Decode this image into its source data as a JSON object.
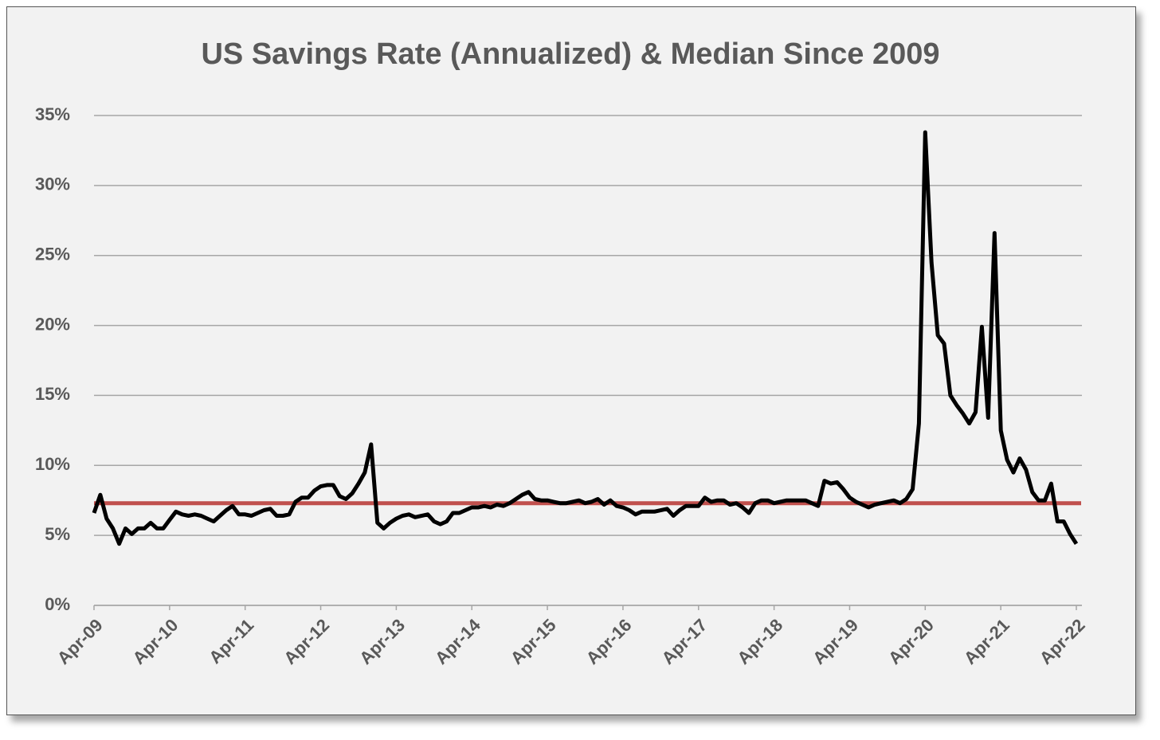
{
  "chart_data": {
    "type": "line",
    "title": "US Savings Rate (Annualized) & Median Since 2009",
    "categories": [
      "Apr-09",
      null,
      null,
      null,
      null,
      null,
      null,
      null,
      null,
      null,
      null,
      null,
      "Apr-10",
      null,
      null,
      null,
      null,
      null,
      null,
      null,
      null,
      null,
      null,
      null,
      "Apr-11",
      null,
      null,
      null,
      null,
      null,
      null,
      null,
      null,
      null,
      null,
      null,
      "Apr-12",
      null,
      null,
      null,
      null,
      null,
      null,
      null,
      null,
      null,
      null,
      null,
      "Apr-13",
      null,
      null,
      null,
      null,
      null,
      null,
      null,
      null,
      null,
      null,
      null,
      "Apr-14",
      null,
      null,
      null,
      null,
      null,
      null,
      null,
      null,
      null,
      null,
      null,
      "Apr-15",
      null,
      null,
      null,
      null,
      null,
      null,
      null,
      null,
      null,
      null,
      null,
      "Apr-16",
      null,
      null,
      null,
      null,
      null,
      null,
      null,
      null,
      null,
      null,
      null,
      "Apr-17",
      null,
      null,
      null,
      null,
      null,
      null,
      null,
      null,
      null,
      null,
      null,
      "Apr-18",
      null,
      null,
      null,
      null,
      null,
      null,
      null,
      null,
      null,
      null,
      null,
      "Apr-19",
      null,
      null,
      null,
      null,
      null,
      null,
      null,
      null,
      null,
      null,
      null,
      "Apr-20",
      null,
      null,
      null,
      null,
      null,
      null,
      null,
      null,
      null,
      null,
      null,
      "Apr-21",
      null,
      null,
      null,
      null,
      null,
      null,
      null,
      null,
      null,
      null,
      null,
      "Apr-22"
    ],
    "series": [
      {
        "color": "#000000",
        "values": [
          6.6,
          7.9,
          6.2,
          5.5,
          4.4,
          5.5,
          5.1,
          5.5,
          5.5,
          5.9,
          5.5,
          5.5,
          6.1,
          6.7,
          6.5,
          6.4,
          6.5,
          6.4,
          6.2,
          6.0,
          6.4,
          6.8,
          7.1,
          6.5,
          6.5,
          6.4,
          6.6,
          6.8,
          6.9,
          6.4,
          6.4,
          6.5,
          7.4,
          7.7,
          7.7,
          8.2,
          8.5,
          8.6,
          8.6,
          7.8,
          7.6,
          8.0,
          8.7,
          9.5,
          11.5,
          5.9,
          5.5,
          5.9,
          6.2,
          6.4,
          6.5,
          6.3,
          6.4,
          6.5,
          6.0,
          5.8,
          6.0,
          6.6,
          6.6,
          6.8,
          7.0,
          7.0,
          7.1,
          7.0,
          7.2,
          7.1,
          7.3,
          7.6,
          7.9,
          8.1,
          7.6,
          7.5,
          7.5,
          7.4,
          7.3,
          7.3,
          7.4,
          7.5,
          7.3,
          7.4,
          7.6,
          7.2,
          7.5,
          7.1,
          7.0,
          6.8,
          6.5,
          6.7,
          6.7,
          6.7,
          6.8,
          6.9,
          6.4,
          6.8,
          7.1,
          7.1,
          7.1,
          7.7,
          7.4,
          7.5,
          7.5,
          7.2,
          7.3,
          7.0,
          6.6,
          7.3,
          7.5,
          7.5,
          7.3,
          7.4,
          7.5,
          7.5,
          7.5,
          7.5,
          7.3,
          7.1,
          8.9,
          8.7,
          8.8,
          8.3,
          7.7,
          7.4,
          7.2,
          7.0,
          7.2,
          7.3,
          7.4,
          7.5,
          7.3,
          7.6,
          8.3,
          13.0,
          33.8,
          24.5,
          19.3,
          18.7,
          15.0,
          14.3,
          13.7,
          13.0,
          13.8,
          19.9,
          13.4,
          26.6,
          12.5,
          10.4,
          9.5,
          10.5,
          9.7,
          8.1,
          7.5,
          7.5,
          8.7,
          6.0,
          6.0,
          5.1,
          4.4
        ]
      }
    ],
    "median": {
      "value": 7.3,
      "color": "#c0504d"
    },
    "ylim": [
      0,
      35
    ],
    "yticks": [
      {
        "value": 0,
        "label": "0%"
      },
      {
        "value": 5,
        "label": "5%"
      },
      {
        "value": 10,
        "label": "10%"
      },
      {
        "value": 15,
        "label": "15%"
      },
      {
        "value": 20,
        "label": "20%"
      },
      {
        "value": 25,
        "label": "25%"
      },
      {
        "value": 30,
        "label": "30%"
      },
      {
        "value": 35,
        "label": "35%"
      }
    ],
    "grid": true
  }
}
